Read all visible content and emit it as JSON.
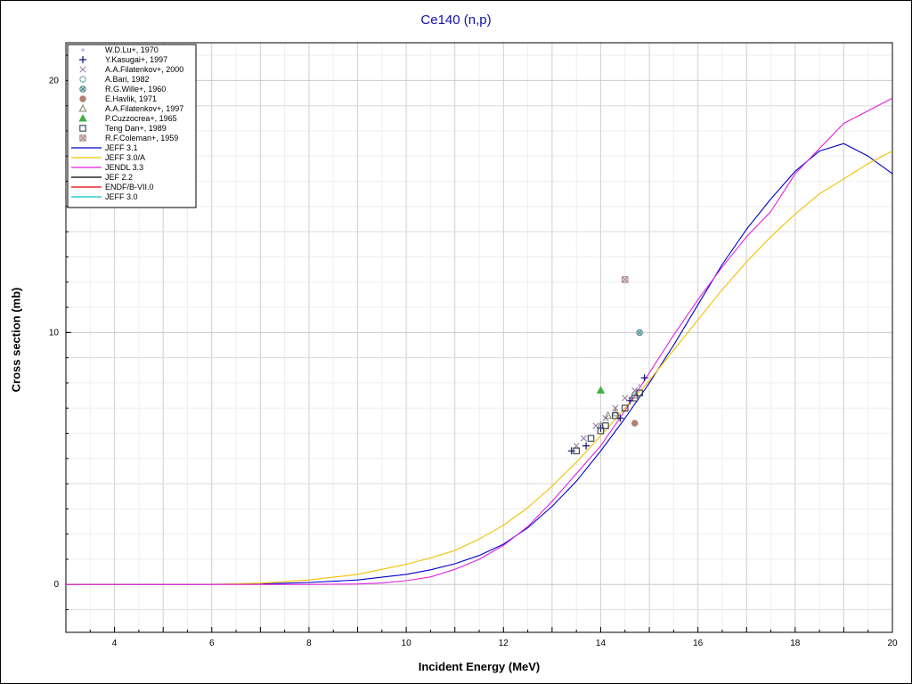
{
  "chart_data": {
    "type": "scatter",
    "title": "Ce140 (n,p)",
    "xlabel": "Incident Energy (MeV)",
    "ylabel": "Cross section (mb)",
    "xlim": [
      3,
      20
    ],
    "ylim": [
      -1.9,
      21.5
    ],
    "x_ticks": [
      4,
      6,
      8,
      10,
      12,
      14,
      16,
      18,
      20
    ],
    "y_ticks": [
      0,
      10,
      20
    ],
    "x_minor_step": 0.5,
    "y_minor_step": 1,
    "grid": true,
    "legend_position": "top-left",
    "scatter_series": [
      {
        "name": "W.D.Lu+, 1970",
        "marker": "small-plus",
        "color": "#a0a0d0",
        "points": [
          [
            14.6,
            7.4
          ],
          [
            14.8,
            7.9
          ]
        ]
      },
      {
        "name": "Y.Kasugai+, 1997",
        "marker": "plus",
        "color": "#101070",
        "points": [
          [
            13.4,
            5.3
          ],
          [
            13.7,
            5.5
          ],
          [
            14.0,
            6.2
          ],
          [
            14.4,
            6.6
          ],
          [
            14.6,
            7.3
          ],
          [
            14.9,
            8.2
          ]
        ]
      },
      {
        "name": "A.A.Filatenkov+, 2000",
        "marker": "x",
        "color": "#9070a0",
        "points": [
          [
            13.5,
            5.5
          ],
          [
            13.65,
            5.8
          ],
          [
            13.9,
            6.3
          ],
          [
            14.1,
            6.6
          ],
          [
            14.3,
            7.0
          ],
          [
            14.5,
            7.4
          ],
          [
            14.7,
            7.7
          ]
        ]
      },
      {
        "name": "A.Bari, 1982",
        "marker": "circle-open",
        "color": "#60a0a0",
        "points": [
          [
            14.7,
            7.5
          ]
        ]
      },
      {
        "name": "R.G.Wille+, 1960",
        "marker": "circle-x",
        "color": "#408080",
        "points": [
          [
            14.8,
            10.0
          ]
        ]
      },
      {
        "name": "E.Havlik, 1971",
        "marker": "circle-filled",
        "color": "#b08070",
        "points": [
          [
            14.7,
            6.4
          ]
        ]
      },
      {
        "name": "A.A.Filatenkov+, 1997",
        "marker": "triangle-open",
        "color": "#808060",
        "points": [
          [
            14.0,
            6.3
          ],
          [
            14.15,
            6.7
          ],
          [
            14.3,
            6.8
          ]
        ]
      },
      {
        "name": "P.Cuzzocrea+, 1965",
        "marker": "triangle-filled",
        "color": "#40b040",
        "points": [
          [
            14.0,
            7.7
          ]
        ]
      },
      {
        "name": "Teng Dan+, 1989",
        "marker": "square-open",
        "color": "#304050",
        "points": [
          [
            13.5,
            5.3
          ],
          [
            13.8,
            5.8
          ],
          [
            14.0,
            6.1
          ],
          [
            14.1,
            6.3
          ],
          [
            14.3,
            6.7
          ],
          [
            14.5,
            7.0
          ],
          [
            14.7,
            7.4
          ],
          [
            14.8,
            7.6
          ]
        ]
      },
      {
        "name": "R.F.Coleman+, 1959",
        "marker": "square-x",
        "color": "#a08080",
        "points": [
          [
            14.5,
            12.1
          ]
        ]
      }
    ],
    "line_series": [
      {
        "name": "JEFF 3.1",
        "color": "#0000cc",
        "points": [
          [
            3,
            0
          ],
          [
            5.5,
            0
          ],
          [
            7,
            0.02
          ],
          [
            8,
            0.08
          ],
          [
            9,
            0.18
          ],
          [
            10,
            0.4
          ],
          [
            10.5,
            0.58
          ],
          [
            11,
            0.82
          ],
          [
            11.5,
            1.15
          ],
          [
            12,
            1.6
          ],
          [
            12.5,
            2.25
          ],
          [
            13,
            3.1
          ],
          [
            13.5,
            4.1
          ],
          [
            14,
            5.3
          ],
          [
            14.5,
            6.6
          ],
          [
            15,
            8.0
          ],
          [
            15.5,
            9.5
          ],
          [
            16,
            11.1
          ],
          [
            16.5,
            12.7
          ],
          [
            17,
            14.1
          ],
          [
            17.5,
            15.3
          ],
          [
            18,
            16.4
          ],
          [
            18.5,
            17.2
          ],
          [
            19,
            17.5
          ],
          [
            19.5,
            17.0
          ],
          [
            20,
            16.3
          ]
        ]
      },
      {
        "name": "JEFF 3.0/A",
        "color": "#f0c000",
        "points": [
          [
            3,
            0
          ],
          [
            6,
            0.01
          ],
          [
            7,
            0.05
          ],
          [
            8,
            0.18
          ],
          [
            9,
            0.4
          ],
          [
            10,
            0.8
          ],
          [
            10.5,
            1.05
          ],
          [
            11,
            1.35
          ],
          [
            11.5,
            1.8
          ],
          [
            12,
            2.35
          ],
          [
            12.5,
            3.05
          ],
          [
            13,
            3.9
          ],
          [
            13.5,
            4.85
          ],
          [
            14,
            5.9
          ],
          [
            14.5,
            7.0
          ],
          [
            15,
            8.1
          ],
          [
            15.5,
            9.3
          ],
          [
            16,
            10.5
          ],
          [
            16.5,
            11.7
          ],
          [
            17,
            12.8
          ],
          [
            17.5,
            13.8
          ],
          [
            18,
            14.7
          ],
          [
            18.5,
            15.5
          ],
          [
            19,
            16.1
          ],
          [
            19.5,
            16.7
          ],
          [
            20,
            17.2
          ]
        ]
      },
      {
        "name": "JENDL 3.3",
        "color": "#e020e0",
        "points": [
          [
            3,
            0
          ],
          [
            8,
            0
          ],
          [
            9,
            0.02
          ],
          [
            9.5,
            0.06
          ],
          [
            10,
            0.15
          ],
          [
            10.5,
            0.3
          ],
          [
            11,
            0.6
          ],
          [
            11.5,
            1.0
          ],
          [
            12,
            1.55
          ],
          [
            12.5,
            2.3
          ],
          [
            13,
            3.3
          ],
          [
            13.5,
            4.4
          ],
          [
            14,
            5.5
          ],
          [
            14.5,
            6.9
          ],
          [
            15,
            8.4
          ],
          [
            15.5,
            9.9
          ],
          [
            16,
            11.3
          ],
          [
            16.5,
            12.6
          ],
          [
            17,
            13.8
          ],
          [
            17.5,
            14.8
          ],
          [
            18,
            16.3
          ],
          [
            18.5,
            17.3
          ],
          [
            19,
            18.3
          ],
          [
            19.5,
            18.8
          ],
          [
            20,
            19.3
          ]
        ]
      },
      {
        "name": "JEF 2.2",
        "color": "#000000",
        "points": []
      },
      {
        "name": "ENDF/B-VII.0",
        "color": "#e00000",
        "points": []
      },
      {
        "name": "JEFF 3.0",
        "color": "#00c0d0",
        "points": []
      }
    ]
  }
}
